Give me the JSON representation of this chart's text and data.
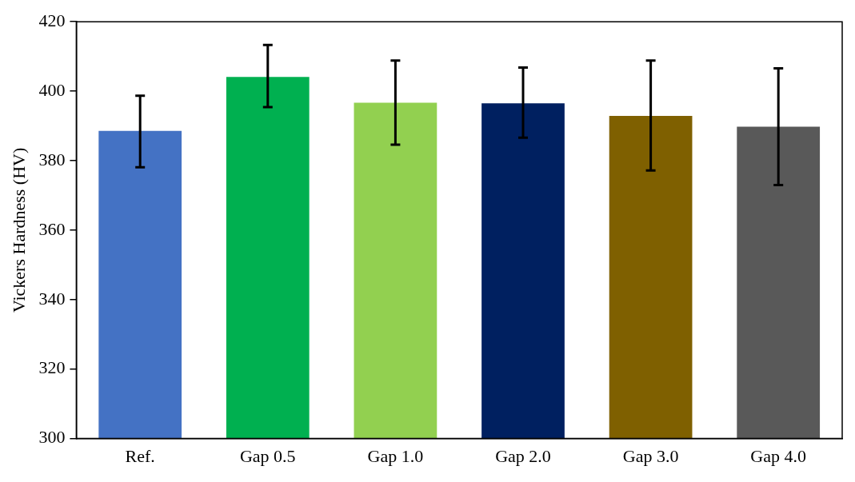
{
  "chart_data": {
    "type": "bar",
    "ylabel": "Vickers Hardness (HV)",
    "categories": [
      "Ref.",
      "Gap 0.5",
      "Gap 1.0",
      "Gap 2.0",
      "Gap 3.0",
      "Gap 4.0"
    ],
    "values": [
      388.6,
      404.1,
      396.7,
      396.5,
      392.9,
      389.8
    ],
    "colors": [
      "#4472c4",
      "#00b050",
      "#92d050",
      "#002060",
      "#7f6000",
      "#595959"
    ],
    "errors": [
      [
        378.1,
        398.7
      ],
      [
        395.4,
        413.3
      ],
      [
        384.6,
        408.8
      ],
      [
        386.6,
        406.8
      ],
      [
        377.2,
        408.8
      ],
      [
        373.0,
        406.6
      ]
    ],
    "ylim": [
      300,
      420
    ],
    "yticks": [
      300,
      320,
      340,
      360,
      380,
      400,
      420
    ],
    "grid": false,
    "legend": false
  }
}
